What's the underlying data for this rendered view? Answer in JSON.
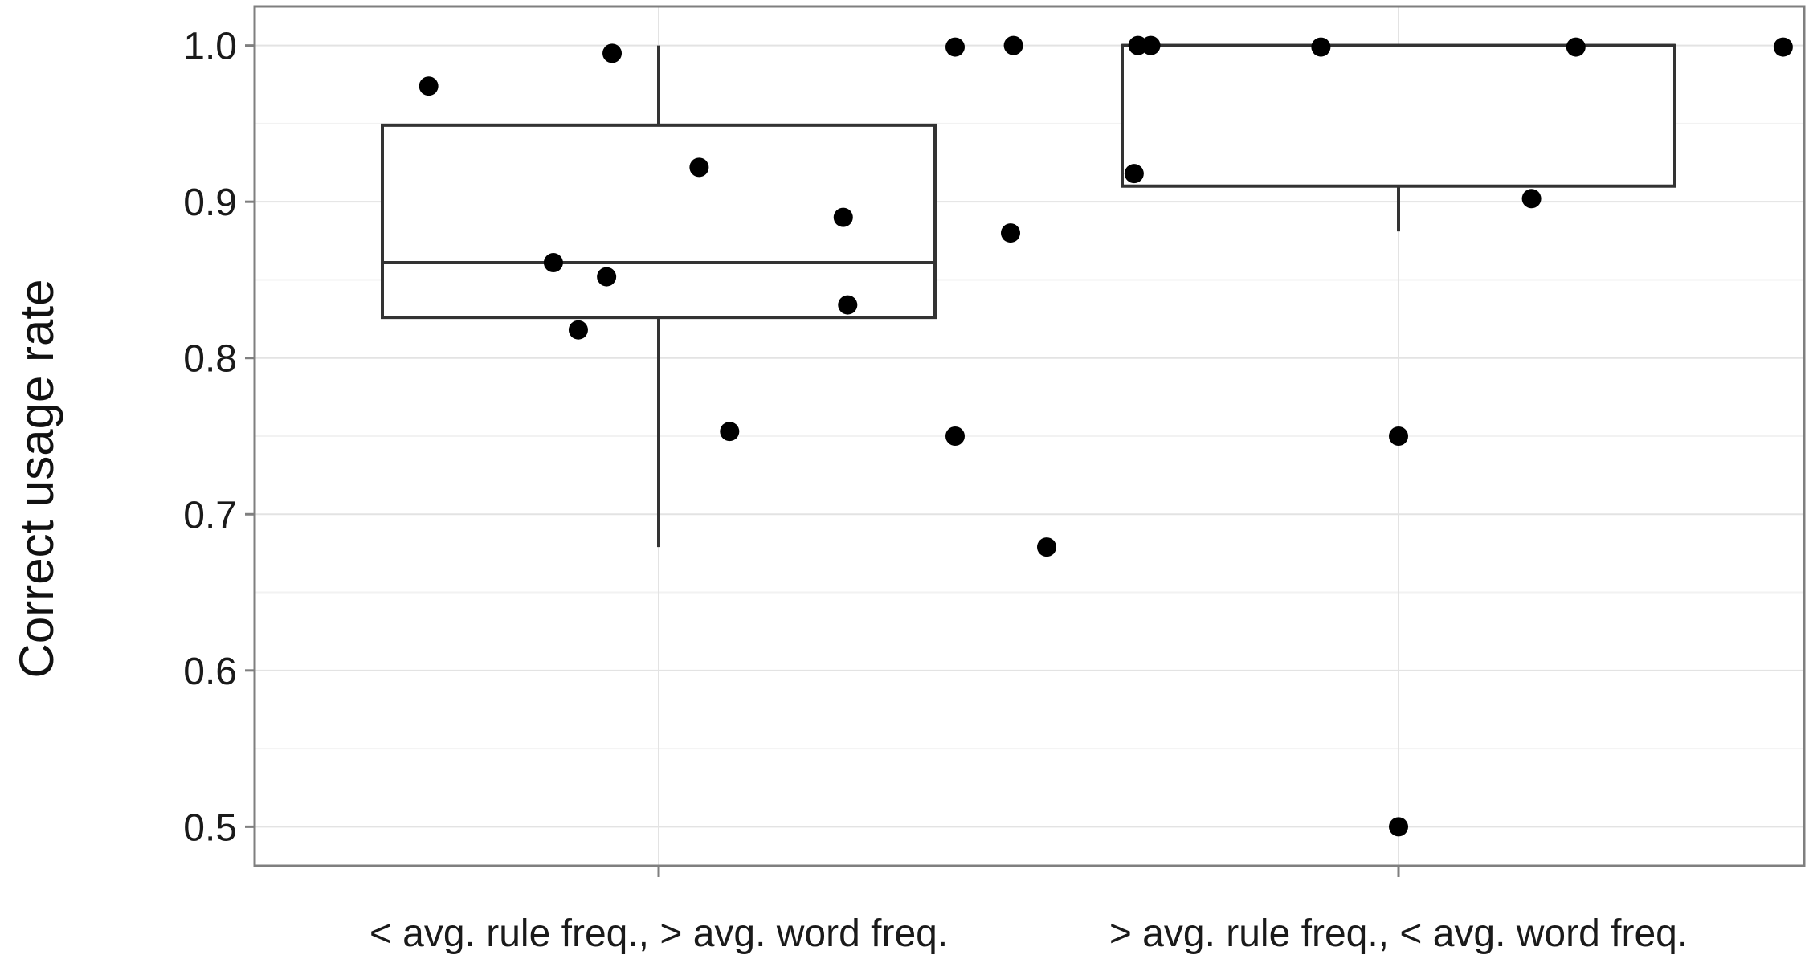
{
  "chart_data": {
    "type": "box",
    "title": "",
    "xlabel": "",
    "ylabel": "Correct usage rate",
    "ylim": [
      0.475,
      1.025
    ],
    "yticks": [
      "0.5",
      "0.6",
      "0.7",
      "0.8",
      "0.9",
      "1.0"
    ],
    "ytick_values": [
      0.5,
      0.6,
      0.7,
      0.8,
      0.9,
      1.0
    ],
    "grid": true,
    "legend": "none",
    "categories": [
      "< avg. rule freq., > avg. word freq.",
      "> avg. rule freq., < avg. word freq."
    ],
    "boxes": [
      {
        "q1": 0.826,
        "median": 0.861,
        "q3": 0.949,
        "whisker_low": 0.679,
        "whisker_high": 1.0
      },
      {
        "q1": 0.91,
        "median": 1.0,
        "q3": 1.0,
        "whisker_low": 0.881,
        "whisker_high": 1.0
      }
    ],
    "points": [
      [
        {
          "dx": -0.415,
          "y": 0.974
        },
        {
          "dx": -0.084,
          "y": 0.995
        },
        {
          "dx": 0.073,
          "y": 0.922
        },
        {
          "dx": 0.333,
          "y": 0.89
        },
        {
          "dx": -0.19,
          "y": 0.861
        },
        {
          "dx": -0.094,
          "y": 0.852
        },
        {
          "dx": 0.341,
          "y": 0.834
        },
        {
          "dx": -0.145,
          "y": 0.818
        },
        {
          "dx": 0.128,
          "y": 0.753
        },
        {
          "dx": 0.64,
          "y": 1.0
        },
        {
          "dx": 0.7,
          "y": 0.679
        }
      ],
      [
        {
          "dx": -0.8,
          "y": 0.999
        },
        {
          "dx": -0.47,
          "y": 1.0
        },
        {
          "dx": -0.447,
          "y": 1.0
        },
        {
          "dx": -0.14,
          "y": 0.999
        },
        {
          "dx": 0.32,
          "y": 0.999
        },
        {
          "dx": 0.694,
          "y": 0.999
        },
        {
          "dx": -0.477,
          "y": 0.918
        },
        {
          "dx": 0.24,
          "y": 0.902
        },
        {
          "dx": -0.7,
          "y": 0.88
        },
        {
          "dx": -0.8,
          "y": 0.75
        },
        {
          "dx": 0.0,
          "y": 0.75
        },
        {
          "dx": 0.0,
          "y": 0.5
        }
      ]
    ],
    "colors": {
      "box_stroke": "#333333",
      "point": "#000000",
      "grid_major": "#e3e3e3",
      "grid_minor": "#f2f2f2",
      "panel_border": "#7f7f7f"
    }
  }
}
